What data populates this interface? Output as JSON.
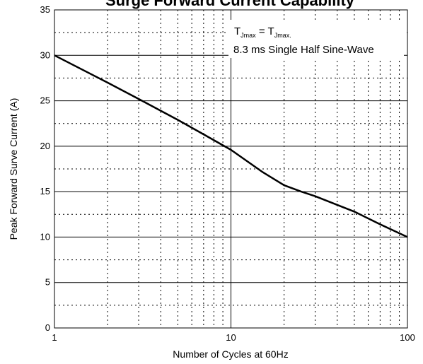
{
  "chart_data": {
    "type": "line",
    "title": "Surge Forward Current Capability",
    "xlabel": "Number of Cycles at 60Hz",
    "ylabel": "Peak Forward Surve Current (A)",
    "xscale": "log",
    "xlim": [
      1,
      100
    ],
    "ylim": [
      0,
      35
    ],
    "x_ticks": [
      "1",
      "10",
      "100"
    ],
    "y_ticks": [
      "0",
      "5",
      "10",
      "15",
      "20",
      "25",
      "30",
      "35"
    ],
    "grid": "major solid, minor dotted",
    "series": [
      {
        "x": [
          1,
          2,
          3,
          5,
          7,
          10,
          15,
          20,
          25,
          30,
          50,
          70,
          100
        ],
        "y": [
          30,
          27,
          25.2,
          22.9,
          21.3,
          19.6,
          17.2,
          15.7,
          15.0,
          14.5,
          12.8,
          11.4,
          10.0
        ]
      }
    ],
    "annotations": {
      "line1_t": "T",
      "line1_sub1": "Jmax",
      "line1_eq": " = T",
      "line1_sub2": "Jmax.",
      "line2": "8.3 ms Single Half Sine-Wave"
    }
  }
}
